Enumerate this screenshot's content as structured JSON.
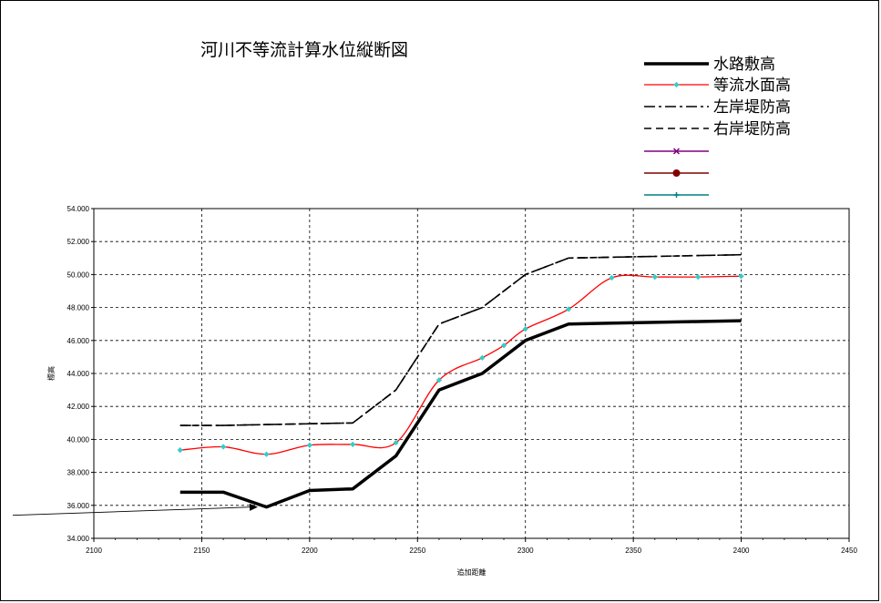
{
  "chart_data": {
    "type": "line",
    "title": "河川不等流計算水位縦断図",
    "xlabel": "追加距離",
    "ylabel": "標高",
    "xlim": [
      2100,
      2450
    ],
    "ylim": [
      34,
      54
    ],
    "xticks": [
      "2100",
      "2150",
      "2200",
      "2250",
      "2300",
      "2350",
      "2400",
      "2450"
    ],
    "yticks": [
      "34.000",
      "36.000",
      "38.000",
      "40.000",
      "42.000",
      "44.000",
      "46.000",
      "48.000",
      "50.000",
      "52.000",
      "54.000"
    ],
    "grid": true,
    "legend_position": "top-right",
    "series": [
      {
        "name": "水路敷高",
        "color": "#000000",
        "style": "solid-thick",
        "x": [
          2140,
          2160,
          2180,
          2200,
          2220,
          2240,
          2260,
          2280,
          2300,
          2320,
          2340,
          2360,
          2380,
          2400
        ],
        "y": [
          36.8,
          36.8,
          35.9,
          36.9,
          37.0,
          39.0,
          43.0,
          44.0,
          46.0,
          47.0,
          47.05,
          47.1,
          47.15,
          47.2
        ]
      },
      {
        "name": "等流水面高",
        "color": "#ff0000",
        "marker_color": "#33cccc",
        "style": "solid-smooth",
        "x": [
          2140,
          2160,
          2180,
          2200,
          2220,
          2240,
          2260,
          2280,
          2290,
          2300,
          2320,
          2340,
          2360,
          2380,
          2400
        ],
        "y": [
          39.35,
          39.55,
          39.1,
          39.65,
          39.7,
          39.8,
          43.6,
          44.95,
          45.7,
          46.7,
          47.9,
          49.8,
          49.85,
          49.85,
          49.9
        ]
      },
      {
        "name": "左岸堤防高",
        "color": "#000000",
        "style": "dash-dot",
        "x": [
          2140,
          2160,
          2180,
          2200,
          2220,
          2240,
          2260,
          2280,
          2300,
          2320,
          2340,
          2360,
          2380,
          2400
        ],
        "y": [
          40.85,
          40.85,
          40.9,
          40.95,
          41.0,
          43.0,
          47.0,
          48.0,
          50.0,
          51.0,
          51.05,
          51.1,
          51.15,
          51.2
        ]
      },
      {
        "name": "右岸堤防高",
        "color": "#000000",
        "style": "dash",
        "x": [
          2140,
          2160,
          2180,
          2200,
          2220,
          2240,
          2260,
          2280,
          2300,
          2320,
          2340,
          2360,
          2380,
          2400
        ],
        "y": [
          40.85,
          40.85,
          40.9,
          40.95,
          41.0,
          43.0,
          47.0,
          48.0,
          50.0,
          51.0,
          51.05,
          51.1,
          51.15,
          51.2
        ]
      }
    ],
    "extra_legend_entries": [
      {
        "name": "",
        "color": "#800080",
        "marker": "x"
      },
      {
        "name": "",
        "color": "#800000",
        "marker": "circle"
      },
      {
        "name": "",
        "color": "#008080",
        "marker": "plus"
      }
    ],
    "annotation": {
      "type": "arrow",
      "from": [
        2100,
        35.4
      ],
      "to": [
        2176,
        35.9
      ]
    }
  }
}
